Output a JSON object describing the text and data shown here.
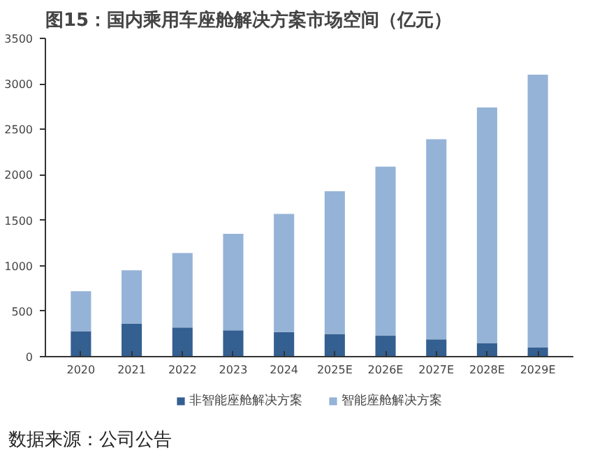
{
  "chart_data": {
    "type": "bar",
    "title": "图15：国内乘用车座舱解决方案市场空间（亿元）",
    "stacked": true,
    "categories": [
      "2020",
      "2021",
      "2022",
      "2023",
      "2024",
      "2025E",
      "2026E",
      "2027E",
      "2028E",
      "2029E"
    ],
    "series": [
      {
        "name": "非智能座舱解决方案",
        "color": "#345f91",
        "values": [
          280,
          360,
          320,
          290,
          270,
          250,
          230,
          190,
          150,
          100
        ]
      },
      {
        "name": "智能座舱解决方案",
        "color": "#95b3d7",
        "values": [
          440,
          590,
          820,
          1060,
          1300,
          1570,
          1860,
          2200,
          2590,
          3000
        ]
      }
    ],
    "ylim": [
      0,
      3500
    ],
    "yticks": [
      0,
      500,
      1000,
      1500,
      2000,
      2500,
      3000,
      3500
    ],
    "grid": false,
    "legend": "bottom",
    "annotations": [
      "数据来源：公司公告"
    ]
  }
}
